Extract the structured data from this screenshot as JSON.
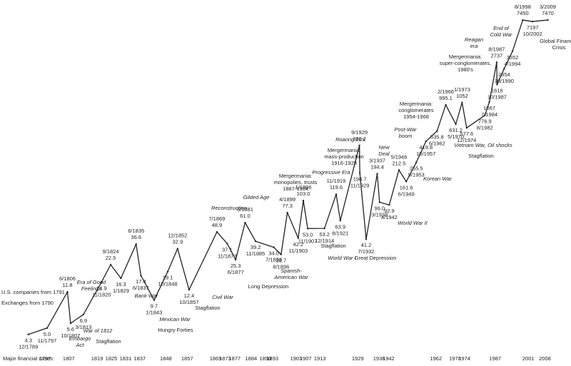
{
  "chart_data": {
    "type": "line",
    "log_scale": true,
    "color": "#222222",
    "xlabel": "Major financial crises:",
    "xlim": [
      1778,
      2019
    ],
    "ylim": [
      3,
      12000
    ],
    "xticks": [
      1797,
      1807,
      1819,
      1825,
      1831,
      1837,
      1848,
      1857,
      1869,
      1873,
      1877,
      1884,
      1890,
      1893,
      1903,
      1907,
      1913,
      1929,
      1938,
      1942,
      1962,
      1970,
      1974,
      1987,
      2001,
      2008
    ],
    "x": [
      "12/1789",
      "11/1797",
      "6/1806",
      "10/1807",
      "3/1813",
      "11/1820",
      "9/1824",
      "1/1829",
      "6/1835",
      "6/1837",
      "1/1843",
      "10/1848",
      "12/1852",
      "10/1857",
      "7/1869",
      "11/1873",
      "6/1877",
      "6/1881",
      "11/1885",
      "7/1893",
      "8/1896",
      "4/1899",
      "11/1903",
      "1/1906",
      "11/1907",
      "12/1914",
      "11/1919",
      "8/1921",
      "9/1929",
      "11/1929",
      "7/1932",
      "3/1937",
      "3/1938",
      "4/1942",
      "5/1946",
      "6/1949",
      "9/1953",
      "10/1957",
      "6/1962",
      "2/1966",
      "5/1970",
      "1/1973",
      "12/1974",
      "8/1982",
      "7/1984",
      "8/1987",
      "10/1987",
      "10/1990",
      "4/1994",
      "8/1998",
      "10/2002",
      "3/2009"
    ],
    "values": [
      4.3,
      5.0,
      11.8,
      5.6,
      6.9,
      14.9,
      22.5,
      16.3,
      36.6,
      17.4,
      9.7,
      19.1,
      32.9,
      12.4,
      48.9,
      37.1,
      25.3,
      61.0,
      39.2,
      34.0,
      28.7,
      77.3,
      42.2,
      103.0,
      53.0,
      53.2,
      119.6,
      63.9,
      381.2,
      198.7,
      41.2,
      194.4,
      99.0,
      92.9,
      212.5,
      161.6,
      255.5,
      419.8,
      535.8,
      995.1,
      631.2,
      1052,
      577.6,
      776.9,
      1067,
      2737,
      1616,
      2354,
      3552,
      7450,
      7197,
      7470
    ],
    "value_labels": [
      "4.3",
      "5.0",
      "11.8",
      "5.6",
      "6.9",
      "14.9",
      "22.5",
      "16.3",
      "36.6",
      "17.4",
      "9.7",
      "19.1",
      "32.9",
      "12.4",
      "48.9",
      "37.1",
      "25.3",
      "61.0",
      "39.2",
      "34.0",
      "28.7",
      "77.3",
      "42.2",
      "103.0",
      "53.0",
      "53.2",
      "119.6",
      "63.9",
      "381.2",
      "198.7",
      "41.2",
      "194.4",
      "99.0",
      "92.9",
      "212.5",
      "161.6",
      "255.5",
      "419.8",
      "535.8",
      "995.1",
      "631.2",
      "1052",
      "577.6",
      "776.9",
      "1067",
      "2737",
      "1616",
      "2354",
      "3552",
      "7450",
      "7197",
      "7470"
    ],
    "annotations": [
      {
        "lines": [
          "U.S. companies from 1791"
        ],
        "italic": false
      },
      {
        "lines": [
          "Exchanges from 1790"
        ],
        "italic": false
      },
      {
        "lines": [
          "Embargo",
          "Act"
        ],
        "italic": true
      },
      {
        "lines": [
          "War of 1812"
        ],
        "italic": true
      },
      {
        "lines": [
          "Stagflation"
        ],
        "italic": false
      },
      {
        "lines": [
          "Era of Good",
          "Feelings"
        ],
        "italic": true
      },
      {
        "lines": [
          "Bank War"
        ],
        "italic": true
      },
      {
        "lines": [
          "Mexican War"
        ],
        "italic": true
      },
      {
        "lines": [
          "Hungry Forties"
        ],
        "italic": false
      },
      {
        "lines": [
          "Stagflation"
        ],
        "italic": false
      },
      {
        "lines": [
          "Civil War"
        ],
        "italic": true
      },
      {
        "lines": [
          "Reconstruction"
        ],
        "italic": true
      },
      {
        "lines": [
          "Long Depression"
        ],
        "italic": false
      },
      {
        "lines": [
          "Gilded Age"
        ],
        "italic": true
      },
      {
        "lines": [
          "Spanish-",
          "American War"
        ],
        "italic": true
      },
      {
        "lines": [
          "Mergermania:",
          "monopolies, trusts",
          "1887-1904"
        ],
        "italic": false
      },
      {
        "lines": [
          "Progressive Era"
        ],
        "italic": true
      },
      {
        "lines": [
          "Stagflation"
        ],
        "italic": false
      },
      {
        "lines": [
          "World War I"
        ],
        "italic": true
      },
      {
        "lines": [
          "Mergermania:",
          "mass-production",
          "1916-1929"
        ],
        "italic": false
      },
      {
        "lines": [
          "Roaring 20's"
        ],
        "italic": true
      },
      {
        "lines": [
          "Great Depression"
        ],
        "italic": false
      },
      {
        "lines": [
          "New",
          "Deal"
        ],
        "italic": true
      },
      {
        "lines": [
          "World War II"
        ],
        "italic": true
      },
      {
        "lines": [
          "Post-War",
          "boom"
        ],
        "italic": true
      },
      {
        "lines": [
          "Korean War"
        ],
        "italic": true
      },
      {
        "lines": [
          "Mergermania:",
          "conglomerates",
          "1954-1968"
        ],
        "italic": false
      },
      {
        "lines": [
          "Vietnam War, Oil shocks"
        ],
        "italic": true
      },
      {
        "lines": [
          "Stagflation"
        ],
        "italic": false
      },
      {
        "lines": [
          "Mergermania:",
          "super-conglomerates,",
          "1980's"
        ],
        "italic": false
      },
      {
        "lines": [
          "Reagan",
          "era"
        ],
        "italic": true
      },
      {
        "lines": [
          "End of",
          "Cold War"
        ],
        "italic": true
      },
      {
        "lines": [
          "Global Financial",
          "Crisis"
        ],
        "italic": false
      }
    ]
  }
}
